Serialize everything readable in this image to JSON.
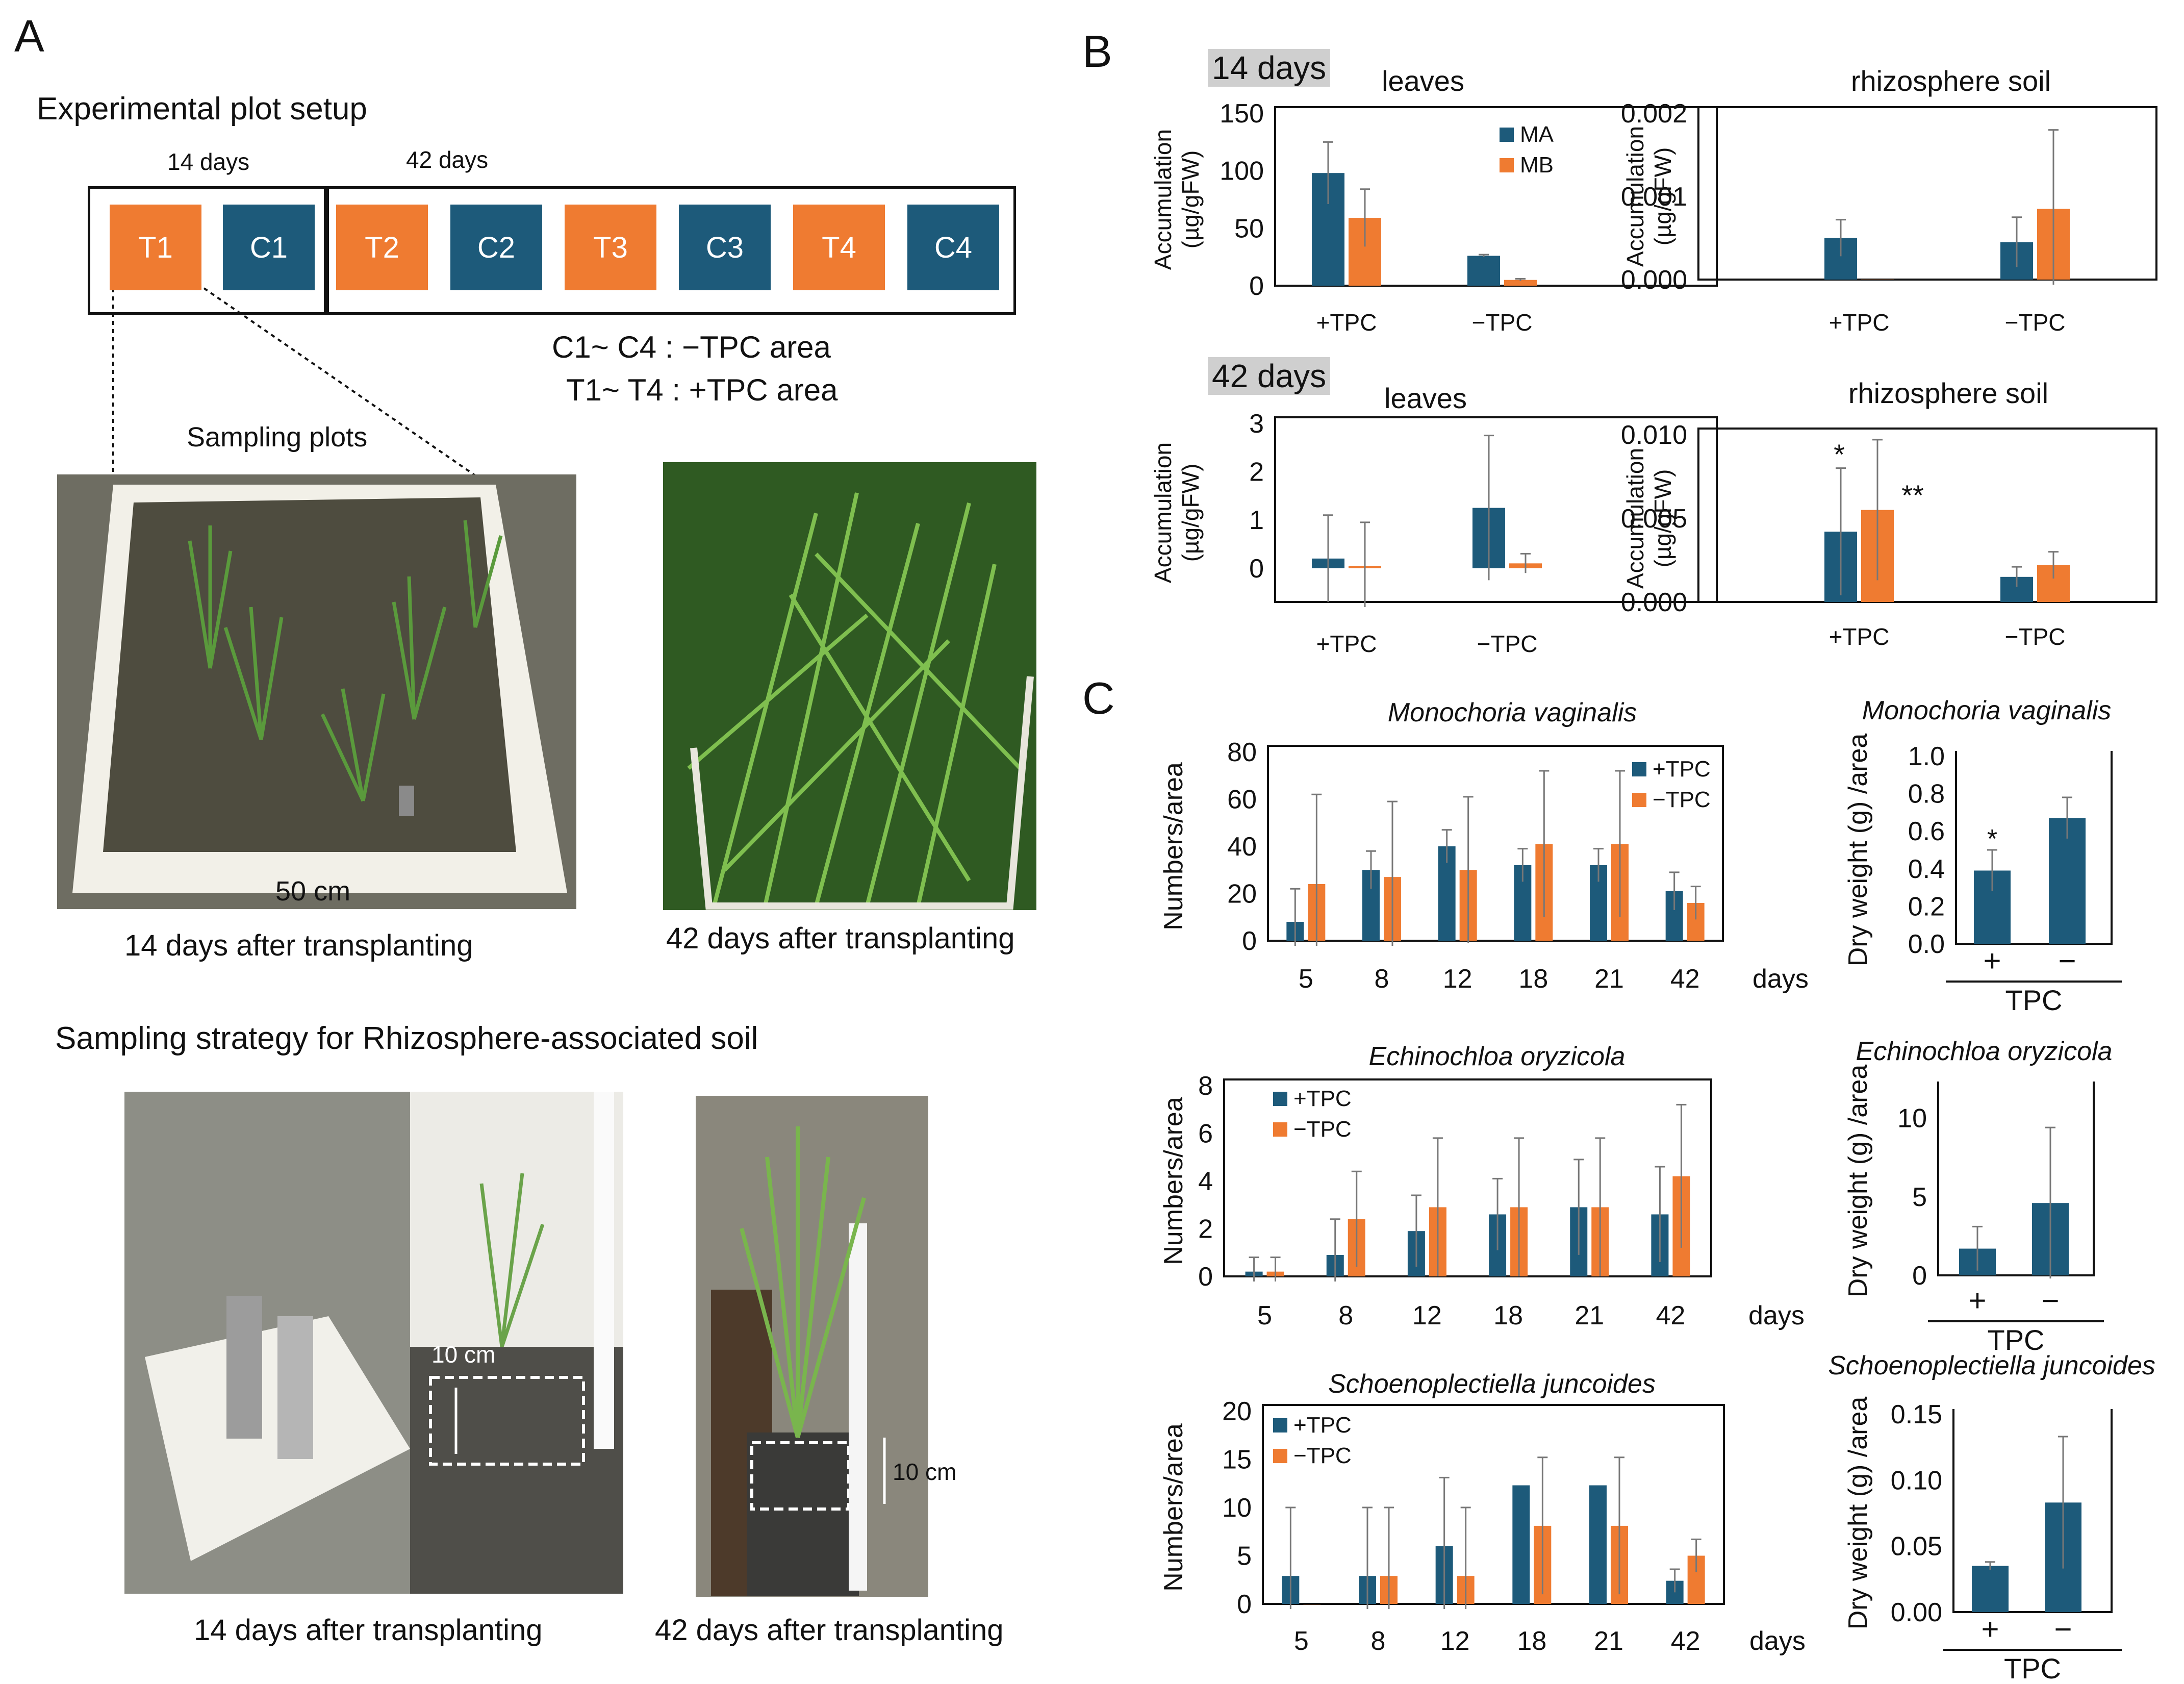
{
  "colors": {
    "blue": "#1d5a7a",
    "orange": "#ef7b31",
    "photo_bg": "#6b6a5e"
  },
  "panel_a": {
    "letter": "A",
    "title": "Experimental plot setup",
    "label_14": "14 days",
    "label_42": "42 days",
    "plots": [
      "T1",
      "C1",
      "T2",
      "C2",
      "T3",
      "C3",
      "T4",
      "C4"
    ],
    "plot_types": [
      "T",
      "C",
      "T",
      "C",
      "T",
      "C",
      "T",
      "C"
    ],
    "legend_c": "C1~ C4 : −TPC area",
    "legend_t": "T1~ T4  : +TPC area",
    "sampling_plots": "Sampling plots",
    "scale_50": "50 cm",
    "caption_14": "14 days after transplanting",
    "caption_42": "42 days after transplanting",
    "strategy_title": "Sampling strategy for Rhizosphere-associated soil",
    "scale_10a": "10 cm",
    "scale_10b": "10 cm",
    "caption_14b": "14 days after transplanting",
    "caption_42b": "42 days after transplanting"
  },
  "panel_b": {
    "letter": "B",
    "badge_14": "14 days",
    "badge_42": "42 days"
  },
  "panel_c": {
    "letter": "C"
  },
  "chart_data": [
    {
      "id": "b14_leaves",
      "type": "bar",
      "title": "leaves",
      "ylabel": "Accumulation (µg/gFW)",
      "categories": [
        "+TPC",
        "−TPC"
      ],
      "ylim": [
        0,
        150
      ],
      "yticks": [
        0,
        50,
        100,
        150
      ],
      "tick_labels": [
        "0",
        "50",
        "100",
        "150"
      ],
      "series": [
        {
          "name": "MA",
          "values": [
            98,
            26
          ],
          "errors": [
            27,
            1
          ]
        },
        {
          "name": "MB",
          "values": [
            59,
            5
          ],
          "errors": [
            25,
            1
          ]
        }
      ]
    },
    {
      "id": "b14_soil",
      "type": "bar",
      "title": "rhizosphere soil",
      "ylabel": "Accumulation (µg/gFW)",
      "categories": [
        "+TPC",
        "−TPC"
      ],
      "ylim": [
        0,
        0.002
      ],
      "yticks": [
        0,
        0.001,
        0.002
      ],
      "tick_labels": [
        "0.000",
        "0.001",
        "0.002"
      ],
      "series": [
        {
          "values": [
            0.0005,
            0.00045
          ],
          "errors": [
            0.00022,
            0.0003
          ]
        },
        {
          "values": [
            0,
            0.00085
          ],
          "errors": [
            0,
            0.00095
          ]
        }
      ]
    },
    {
      "id": "b42_leaves",
      "type": "bar",
      "title": "leaves",
      "ylabel": "Accumulation (µg/gFW)",
      "categories": [
        "+TPC",
        "−TPC"
      ],
      "ylim": [
        -0.7,
        3
      ],
      "yticks": [
        0,
        1,
        2,
        3
      ],
      "tick_labels": [
        "0",
        "1",
        "2",
        "3"
      ],
      "series": [
        {
          "values": [
            0.2,
            1.25
          ],
          "errors": [
            0.9,
            1.5
          ]
        },
        {
          "values": [
            0.05,
            0.1
          ],
          "errors": [
            0.9,
            0.2
          ]
        }
      ]
    },
    {
      "id": "b42_soil",
      "type": "bar",
      "title": "rhizosphere soil",
      "ylabel": "Accumulation (µg/gFW)",
      "categories": [
        "+TPC",
        "−TPC"
      ],
      "ylim": [
        0,
        0.01
      ],
      "yticks": [
        0,
        0.005,
        0.01
      ],
      "tick_labels": [
        "0.000",
        "0.005",
        "0.010"
      ],
      "series": [
        {
          "values": [
            0.0042,
            0.0015
          ],
          "errors": [
            0.0038,
            0.0006
          ]
        },
        {
          "values": [
            0.0055,
            0.0022
          ],
          "errors": [
            0.0042,
            0.0008
          ]
        }
      ],
      "annotations": [
        "*",
        "**"
      ]
    },
    {
      "id": "c_mv_num",
      "type": "bar",
      "title": "Monochoria vaginalis",
      "ylabel": "Numbers/area",
      "xlabel": "days",
      "categories": [
        "5",
        "8",
        "12",
        "18",
        "21",
        "42"
      ],
      "ylim": [
        0,
        80
      ],
      "yticks": [
        0,
        20,
        40,
        60,
        80
      ],
      "tick_labels": [
        "0",
        "20",
        "40",
        "60",
        "80"
      ],
      "series": [
        {
          "name": "+TPC",
          "values": [
            8,
            30,
            40,
            32,
            32,
            21
          ],
          "errors": [
            14,
            8,
            7,
            7,
            7,
            8
          ]
        },
        {
          "name": "−TPC",
          "values": [
            24,
            27,
            30,
            41,
            41,
            16
          ],
          "errors": [
            38,
            32,
            31,
            31,
            31,
            7
          ]
        }
      ]
    },
    {
      "id": "c_mv_dw",
      "type": "bar",
      "title": "Monochoria vaginalis",
      "ylabel": "Dry weight (g) /area",
      "xlabel": "TPC",
      "categories": [
        "+",
        "−"
      ],
      "ylim": [
        0,
        1.0
      ],
      "yticks": [
        0,
        0.2,
        0.4,
        0.6,
        0.8,
        1.0
      ],
      "tick_labels": [
        "0.0",
        "0.2",
        "0.4",
        "0.6",
        "0.8",
        "1.0"
      ],
      "series": [
        {
          "values": [
            0.39,
            0.67
          ],
          "errors": [
            0.11,
            0.11
          ]
        }
      ],
      "annotations": [
        "*"
      ]
    },
    {
      "id": "c_eo_num",
      "type": "bar",
      "title": "Echinochloa oryzicola",
      "ylabel": "Numbers/area",
      "xlabel": "days",
      "categories": [
        "5",
        "8",
        "12",
        "18",
        "21",
        "42"
      ],
      "ylim": [
        0,
        8
      ],
      "yticks": [
        0,
        2,
        4,
        6,
        8
      ],
      "tick_labels": [
        "0",
        "2",
        "4",
        "6",
        "8"
      ],
      "series": [
        {
          "name": "+TPC",
          "values": [
            0.2,
            0.9,
            1.9,
            2.6,
            2.9,
            2.6
          ],
          "errors": [
            0.6,
            1.5,
            1.5,
            1.5,
            2.0,
            2.0
          ]
        },
        {
          "name": "−TPC",
          "values": [
            0.2,
            2.4,
            2.9,
            2.9,
            2.9,
            4.2
          ],
          "errors": [
            0.6,
            2.0,
            2.9,
            2.9,
            2.9,
            3.0
          ]
        }
      ]
    },
    {
      "id": "c_eo_dw",
      "type": "bar",
      "title": "Echinochloa oryzicola",
      "ylabel": "Dry weight (g) /area",
      "xlabel": "TPC",
      "categories": [
        "+",
        "−"
      ],
      "ylim": [
        0,
        12
      ],
      "yticks": [
        0,
        5,
        10
      ],
      "tick_labels": [
        "0",
        "5",
        "10"
      ],
      "series": [
        {
          "values": [
            1.7,
            4.6
          ],
          "errors": [
            1.4,
            4.8
          ]
        }
      ]
    },
    {
      "id": "c_sj_num",
      "type": "bar",
      "title": "Schoenoplectiella juncoides",
      "ylabel": "Numbers/area",
      "xlabel": "days",
      "categories": [
        "5",
        "8",
        "12",
        "18",
        "21",
        "42"
      ],
      "ylim": [
        0,
        20
      ],
      "yticks": [
        0,
        5,
        10,
        15,
        20
      ],
      "tick_labels": [
        "0",
        "5",
        "10",
        "15",
        "20"
      ],
      "series": [
        {
          "name": "+TPC",
          "values": [
            2.9,
            2.9,
            6.0,
            12.3,
            12.3,
            2.4
          ],
          "errors": [
            7.1,
            7.1,
            7.1,
            0,
            0,
            1.2
          ]
        },
        {
          "name": "−TPC",
          "values": [
            0,
            2.9,
            2.9,
            8.1,
            8.1,
            5.0
          ],
          "errors": [
            0,
            7.1,
            7.1,
            7.1,
            7.1,
            1.7
          ]
        }
      ]
    },
    {
      "id": "c_sj_dw",
      "type": "bar",
      "title": "Schoenoplectiella juncoides",
      "ylabel": "Dry weight (g) /area",
      "xlabel": "TPC",
      "categories": [
        "+",
        "−"
      ],
      "ylim": [
        0,
        0.15
      ],
      "yticks": [
        0,
        0.05,
        0.1,
        0.15
      ],
      "tick_labels": [
        "0.00",
        "0.05",
        "0.10",
        "0.15"
      ],
      "series": [
        {
          "values": [
            0.035,
            0.083
          ],
          "errors": [
            0.003,
            0.05
          ]
        }
      ]
    }
  ]
}
